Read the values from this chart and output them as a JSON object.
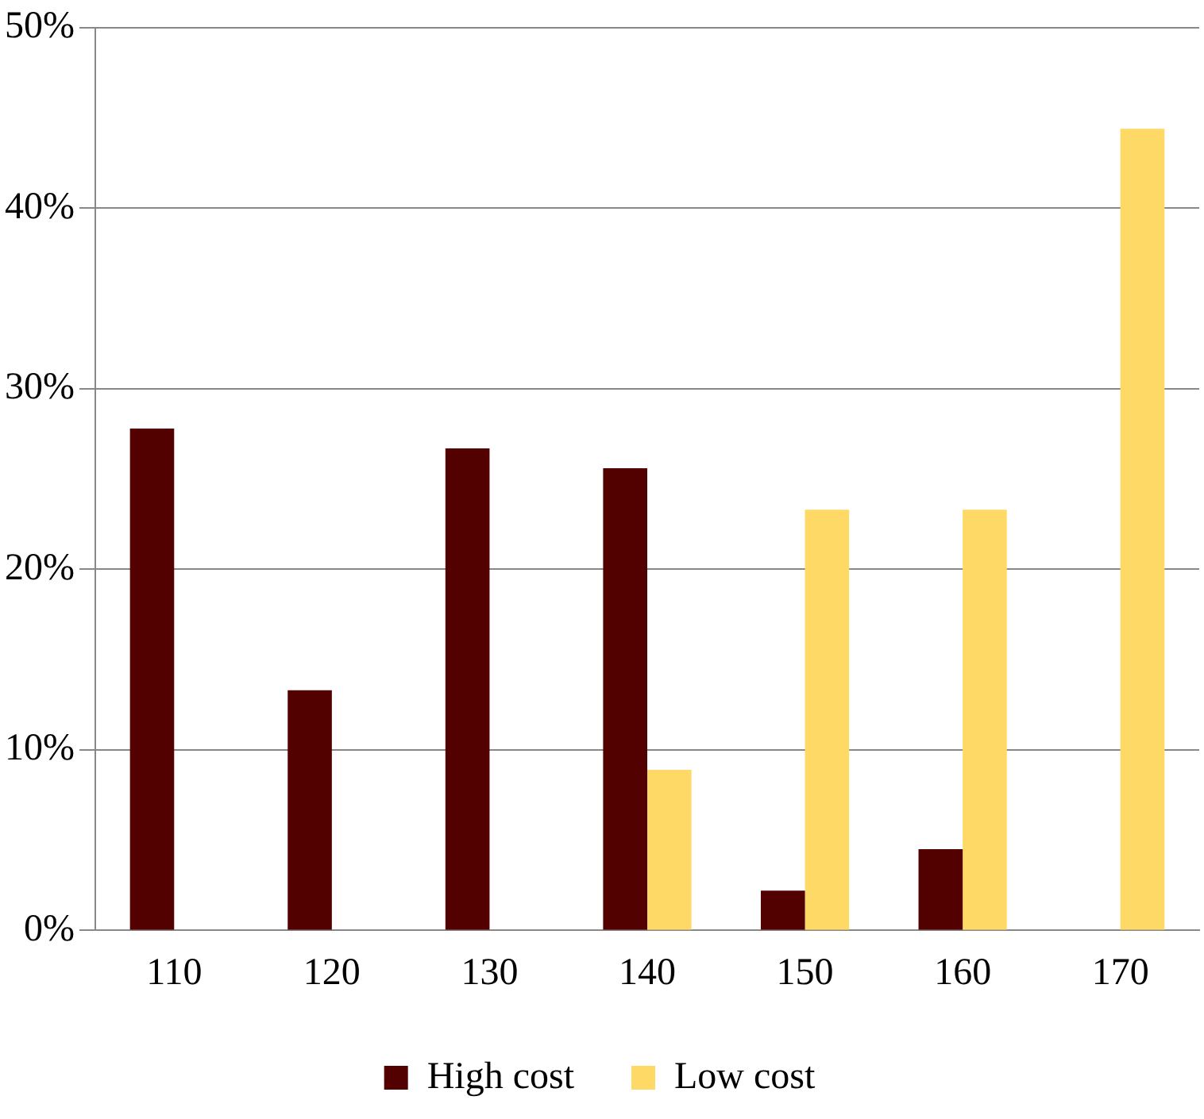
{
  "chart_data": {
    "type": "bar",
    "categories": [
      "110",
      "120",
      "130",
      "140",
      "150",
      "160",
      "170"
    ],
    "series": [
      {
        "name": "High cost",
        "color": "#520000",
        "values": [
          27.8,
          13.3,
          26.7,
          25.6,
          2.2,
          4.5,
          0
        ]
      },
      {
        "name": "Low cost",
        "color": "#ffd966",
        "values": [
          0,
          0,
          0,
          8.9,
          23.3,
          23.3,
          44.4
        ]
      }
    ],
    "ylim": [
      0,
      50
    ],
    "yticks": [
      {
        "value": 0,
        "label": "0%"
      },
      {
        "value": 10,
        "label": "10%"
      },
      {
        "value": 20,
        "label": "20%"
      },
      {
        "value": 30,
        "label": "30%"
      },
      {
        "value": 40,
        "label": "40%"
      },
      {
        "value": 50,
        "label": "50%"
      }
    ],
    "grid": "y",
    "legend": "bottom"
  }
}
